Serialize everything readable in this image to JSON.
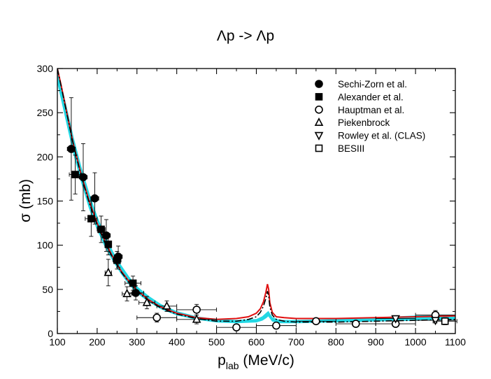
{
  "chart_data": {
    "type": "scatter",
    "title": "Λp -> Λp",
    "xlabel_main": "p",
    "xlabel_sub": "lab",
    "xlabel_unit": " (MeV/c)",
    "ylabel": "σ (mb)",
    "xlim": [
      100,
      1100
    ],
    "ylim": [
      0,
      300
    ],
    "xticks": [
      100,
      200,
      300,
      400,
      500,
      600,
      700,
      800,
      900,
      1000,
      1100
    ],
    "yticks": [
      0,
      50,
      100,
      150,
      200,
      250,
      300
    ],
    "grid": false,
    "legend_position": "top-right",
    "series": [
      {
        "name": "Sechi-Zorn et al.",
        "marker": "circle-filled",
        "points": [
          {
            "x": 135,
            "y": 209,
            "ex": 10,
            "ey": 58
          },
          {
            "x": 165,
            "y": 177,
            "ex": 10,
            "ey": 38
          },
          {
            "x": 194,
            "y": 153,
            "ex": 10,
            "ey": 29
          },
          {
            "x": 223,
            "y": 111,
            "ex": 10,
            "ey": 18
          },
          {
            "x": 253,
            "y": 87,
            "ex": 10,
            "ey": 12
          },
          {
            "x": 297,
            "y": 46,
            "ex": 20,
            "ey": 8
          }
        ]
      },
      {
        "name": "Alexander et al.",
        "marker": "square-filled",
        "points": [
          {
            "x": 145,
            "y": 180,
            "ex": 15,
            "ey": 22
          },
          {
            "x": 185,
            "y": 130,
            "ex": 15,
            "ey": 20
          },
          {
            "x": 210,
            "y": 118,
            "ex": 10,
            "ey": 15
          },
          {
            "x": 228,
            "y": 101,
            "ex": 8,
            "ey": 12
          },
          {
            "x": 250,
            "y": 83,
            "ex": 10,
            "ey": 10
          },
          {
            "x": 290,
            "y": 57,
            "ex": 20,
            "ey": 8
          }
        ]
      },
      {
        "name": "Hauptman et al.",
        "marker": "circle-open",
        "points": [
          {
            "x": 350,
            "y": 18,
            "ex": 50,
            "ey": 5
          },
          {
            "x": 450,
            "y": 27,
            "ex": 50,
            "ey": 6
          },
          {
            "x": 550,
            "y": 7,
            "ex": 50,
            "ey": 3
          },
          {
            "x": 650,
            "y": 9,
            "ex": 50,
            "ey": 3
          },
          {
            "x": 750,
            "y": 14,
            "ex": 50,
            "ey": 3
          },
          {
            "x": 850,
            "y": 11,
            "ex": 50,
            "ey": 3
          },
          {
            "x": 950,
            "y": 11,
            "ex": 50,
            "ey": 3
          },
          {
            "x": 1050,
            "y": 21,
            "ex": 50,
            "ey": 5
          }
        ]
      },
      {
        "name": "Piekenbrock",
        "marker": "triangle-up-open",
        "points": [
          {
            "x": 228,
            "y": 69,
            "ex": 8,
            "ey": 15
          },
          {
            "x": 275,
            "y": 45,
            "ex": 12,
            "ey": 8
          },
          {
            "x": 325,
            "y": 35,
            "ex": 20,
            "ey": 7
          },
          {
            "x": 375,
            "y": 31,
            "ex": 25,
            "ey": 6
          },
          {
            "x": 450,
            "y": 16,
            "ex": 50,
            "ey": 5
          }
        ]
      },
      {
        "name": "Rowley et al. (CLAS)",
        "marker": "triangle-down-open",
        "points": [
          {
            "x": 950,
            "y": 17,
            "ex": 50,
            "ey": 3
          },
          {
            "x": 1050,
            "y": 15,
            "ex": 50,
            "ey": 3
          }
        ]
      },
      {
        "name": "BESIII",
        "marker": "square-open",
        "points": [
          {
            "x": 1074,
            "y": 14,
            "ex": 30,
            "ey": 4
          }
        ]
      }
    ],
    "curves": [
      {
        "style": "cyan-band",
        "x": [
          100,
          120,
          140,
          160,
          180,
          200,
          220,
          240,
          260,
          280,
          300,
          330,
          360,
          400,
          450,
          500,
          550,
          600,
          615,
          625,
          630,
          640,
          660,
          700,
          800,
          900,
          1000,
          1100
        ],
        "lower": [
          285,
          245,
          205,
          172,
          142,
          118,
          98,
          82,
          68,
          56,
          46,
          36,
          28,
          21,
          16,
          13,
          12,
          13,
          15,
          18,
          20,
          14,
          12,
          12,
          13,
          14,
          15,
          16
        ],
        "upper": [
          298,
          262,
          222,
          188,
          158,
          132,
          110,
          92,
          77,
          64,
          53,
          42,
          33,
          25,
          19,
          16,
          15,
          16,
          19,
          23,
          25,
          18,
          15,
          15,
          16,
          18,
          20,
          21
        ]
      },
      {
        "style": "red-solid",
        "x": [
          100,
          110,
          120,
          140,
          160,
          180,
          200,
          220,
          240,
          260,
          280,
          300,
          330,
          360,
          400,
          450,
          500,
          550,
          580,
          600,
          610,
          618,
          624,
          628,
          631,
          634,
          640,
          650,
          670,
          700,
          800,
          900,
          1000,
          1100
        ],
        "y": [
          300,
          280,
          258,
          215,
          180,
          150,
          125,
          104,
          86,
          71,
          59,
          49,
          38,
          30,
          23,
          18,
          16,
          17,
          19,
          23,
          28,
          36,
          47,
          56,
          50,
          35,
          24,
          19,
          18,
          17,
          17,
          18,
          19,
          20
        ]
      },
      {
        "style": "black-dashdot",
        "x": [
          100,
          110,
          120,
          140,
          160,
          180,
          200,
          220,
          240,
          260,
          280,
          300,
          330,
          360,
          400,
          450,
          500,
          550,
          580,
          600,
          610,
          618,
          624,
          628,
          631,
          634,
          640,
          650,
          670,
          700,
          800,
          900,
          1000,
          1100
        ],
        "y": [
          300,
          279,
          257,
          214,
          178,
          148,
          123,
          102,
          85,
          70,
          58,
          48,
          37,
          29,
          22,
          17,
          14,
          14,
          16,
          19,
          24,
          31,
          40,
          48,
          43,
          30,
          21,
          16,
          14,
          13,
          13,
          14,
          15,
          16
        ]
      }
    ]
  }
}
